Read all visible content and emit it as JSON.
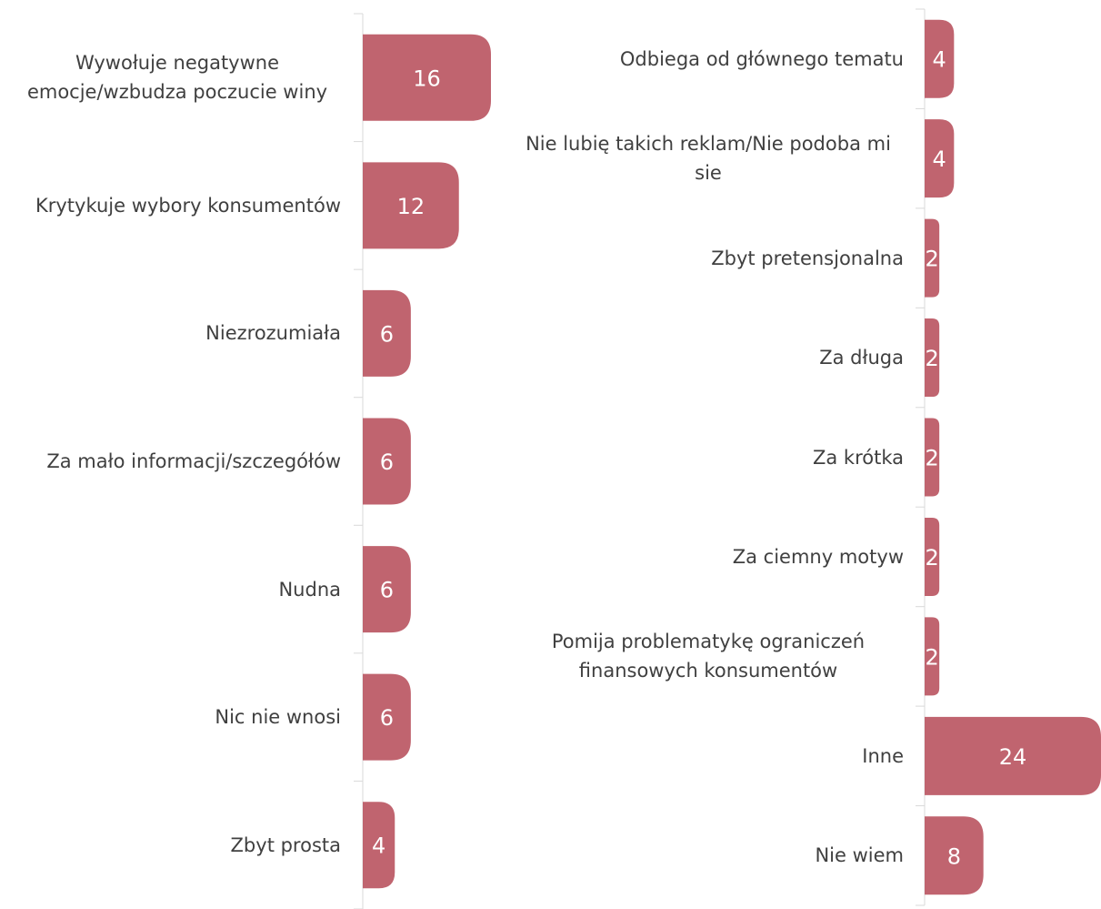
{
  "chart_data": [
    {
      "type": "bar",
      "orientation": "horizontal",
      "categories": [
        "Wywołuje negatywne emocje/wzbudza poczucie winy",
        "Krytykuje wybory konsumentów",
        "Niezrozumiała",
        "Za mało informacji/szczegółów",
        "Nudna",
        "Nic nie wnosi",
        "Zbyt prosta"
      ],
      "values": [
        16,
        12,
        6,
        6,
        6,
        6,
        4
      ],
      "color": "#c0646f",
      "xlim": [
        0,
        16
      ]
    },
    {
      "type": "bar",
      "orientation": "horizontal",
      "categories": [
        "Odbiega od głównego tematu",
        "Nie lubię takich reklam/Nie podoba mi sie",
        "Zbyt pretensjonalna",
        "Za długa",
        "Za krótka",
        "Za ciemny motyw",
        "Pomija problematykę ograniczeń finansowych konsumentów",
        "Inne",
        "Nie wiem"
      ],
      "values": [
        4,
        4,
        2,
        2,
        2,
        2,
        2,
        24,
        8
      ],
      "color": "#c0646f",
      "xlim": [
        0,
        24
      ]
    }
  ]
}
